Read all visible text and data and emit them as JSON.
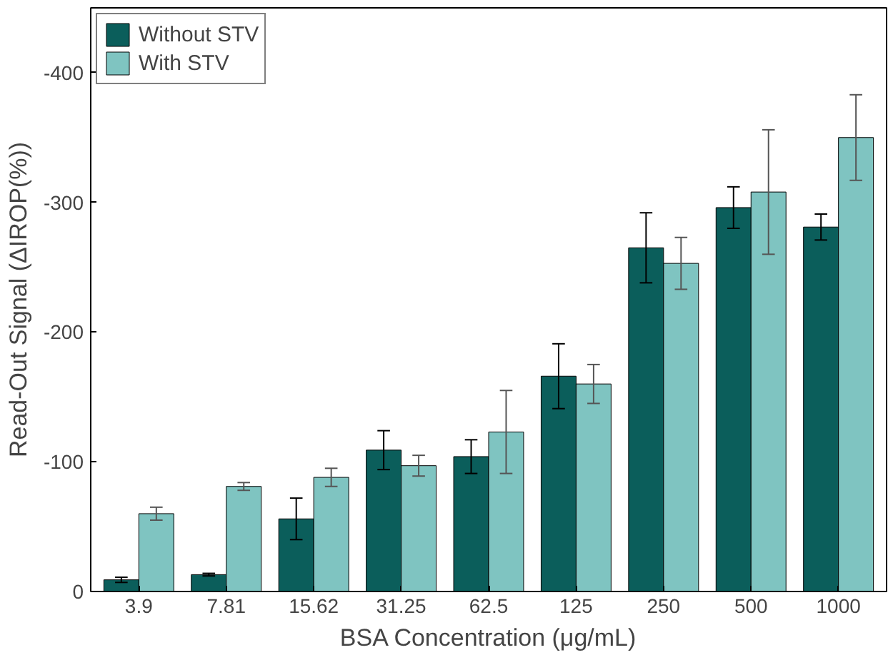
{
  "chart_data": {
    "type": "bar",
    "xlabel": "BSA Concentration (μg/mL)",
    "ylabel": "Read-Out Signal (ΔIROP(%))",
    "categories": [
      "3.9",
      "7.81",
      "15.62",
      "31.25",
      "62.5",
      "125",
      "250",
      "500",
      "1000"
    ],
    "series": [
      {
        "name": "Without STV",
        "color": "#0b5e5b",
        "values": [
          -9,
          -13,
          -56,
          -109,
          -104,
          -166,
          -265,
          -296,
          -281
        ],
        "errors": [
          2,
          1,
          16,
          15,
          13,
          25,
          27,
          16,
          10
        ]
      },
      {
        "name": "With STV",
        "color": "#7fc4c1",
        "values": [
          -60,
          -81,
          -88,
          -97,
          -123,
          -160,
          -253,
          -308,
          -350
        ],
        "errors": [
          5,
          3,
          7,
          8,
          32,
          15,
          20,
          48,
          33
        ]
      }
    ],
    "ylim": [
      0,
      -450
    ],
    "yticks": [
      0,
      -100,
      -200,
      -300,
      -400
    ],
    "grid": false,
    "legend": "top left"
  }
}
